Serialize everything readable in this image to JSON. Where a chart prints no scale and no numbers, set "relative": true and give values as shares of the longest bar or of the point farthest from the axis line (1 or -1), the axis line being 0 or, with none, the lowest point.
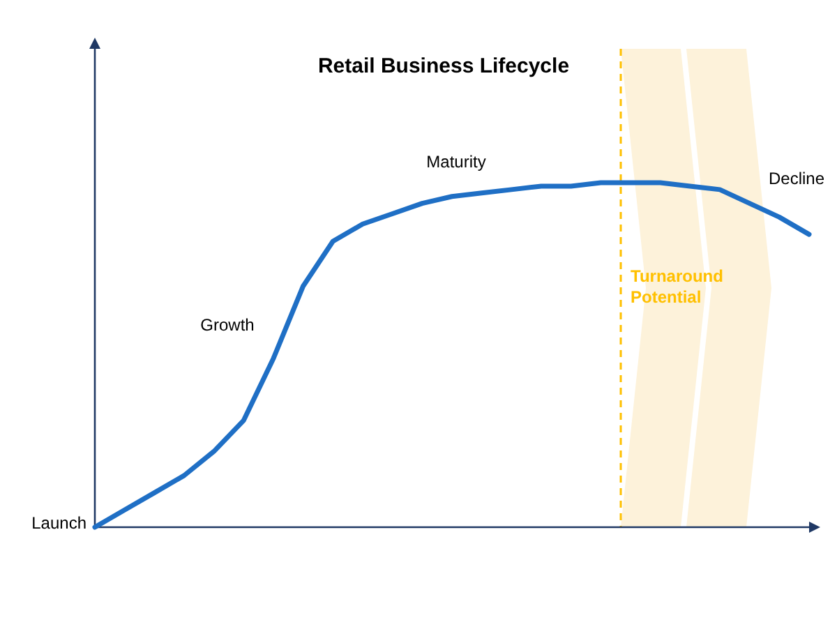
{
  "chart_data": {
    "type": "line",
    "title": "Retail Business Lifecycle",
    "relative": true,
    "categories": [
      null,
      null,
      null,
      null,
      null,
      null,
      null,
      null,
      null,
      null,
      null,
      null,
      null,
      null,
      null,
      null,
      null,
      null,
      null,
      null,
      null,
      null,
      null,
      null,
      null
    ],
    "series": [
      {
        "color": "#1f6fc5",
        "values": [
          0,
          0.05,
          0.1,
          0.15,
          0.22,
          0.31,
          0.49,
          0.7,
          0.83,
          0.88,
          0.91,
          0.94,
          0.96,
          0.97,
          0.98,
          0.99,
          0.99,
          1.0,
          1.0,
          1.0,
          0.99,
          0.98,
          0.94,
          0.9,
          0.85
        ]
      }
    ],
    "annotations": [
      "Launch",
      "Growth",
      "Maturity",
      "Decline",
      "Turnaround Potential"
    ]
  }
}
